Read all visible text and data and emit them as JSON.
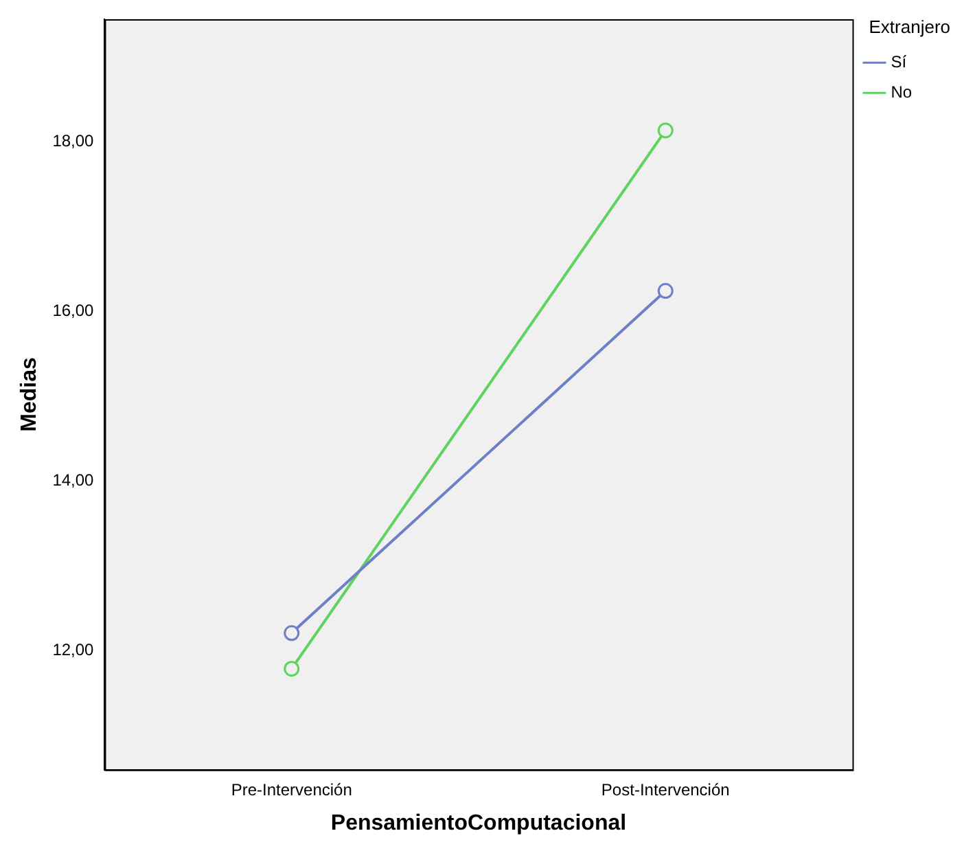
{
  "chart_data": {
    "type": "line",
    "xlabel": "PensamientoComputacional",
    "ylabel": "Medias",
    "legend_title": "Extranjero",
    "legend": "top right",
    "marker": "circle",
    "grid": false,
    "categories": [
      "Pre-Intervención",
      "Post-Intervención"
    ],
    "series": [
      {
        "name": "Sí",
        "color": "#6f7fc5",
        "values": [
          12.21,
          16.24
        ]
      },
      {
        "name": "No",
        "color": "#5fd35f",
        "values": [
          11.79,
          18.13
        ]
      }
    ],
    "ylim": [
      10.6,
      19.44
    ],
    "yticks": [
      {
        "value": 12,
        "label": "12,00"
      },
      {
        "value": 14,
        "label": "14,00"
      },
      {
        "value": 16,
        "label": "16,00"
      },
      {
        "value": 18,
        "label": "18,00"
      }
    ]
  }
}
